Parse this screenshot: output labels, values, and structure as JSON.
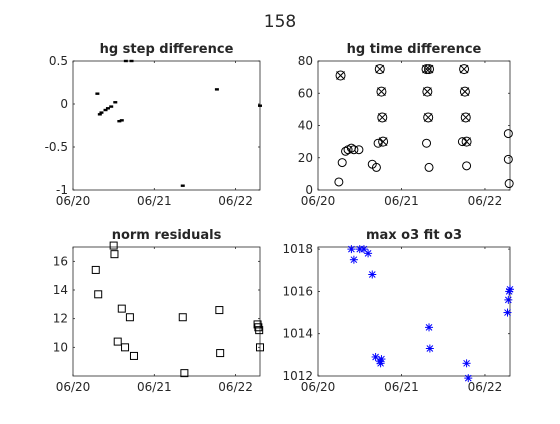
{
  "figure_title": "158",
  "colors": {
    "axis": "#262626",
    "marker_black": "#000000",
    "marker_blue": "#0000ff"
  },
  "chart_data": [
    {
      "type": "scatter",
      "title": "hg step difference",
      "xlabel": "",
      "ylabel": "",
      "xlim": [
        0,
        2.3
      ],
      "ylim": [
        -1,
        0.5
      ],
      "xticks": [
        0,
        1,
        2
      ],
      "xticklabels": [
        "06/20",
        "06/21",
        "06/22"
      ],
      "yticks": [
        -1,
        -0.5,
        0,
        0.5
      ],
      "yticklabels": [
        "-1",
        "-0.5",
        "0",
        "0.5"
      ],
      "marker": "dash",
      "series": [
        {
          "x": [
            0.3,
            0.33,
            0.35,
            0.4,
            0.43,
            0.47,
            0.52,
            0.57,
            0.6,
            0.65,
            0.72,
            1.35,
            1.77,
            2.3
          ],
          "y": [
            0.12,
            -0.12,
            -0.1,
            -0.07,
            -0.05,
            -0.03,
            0.02,
            -0.2,
            -0.19,
            0.5,
            0.5,
            -0.95,
            0.17,
            -0.02
          ]
        }
      ]
    },
    {
      "type": "scatter",
      "title": "hg time difference",
      "xlabel": "",
      "ylabel": "",
      "xlim": [
        0,
        2.3
      ],
      "ylim": [
        0,
        80
      ],
      "xticks": [
        0,
        1,
        2
      ],
      "xticklabels": [
        "06/20",
        "06/21",
        "06/22"
      ],
      "yticks": [
        0,
        20,
        40,
        60,
        80
      ],
      "yticklabels": [
        "0",
        "20",
        "40",
        "60",
        "80"
      ],
      "series": [
        {
          "marker": "circle",
          "x": [
            0.25,
            0.29,
            0.33,
            0.36,
            0.4,
            0.43,
            0.49,
            0.65,
            0.7,
            0.72,
            1.3,
            1.33,
            1.73,
            1.78,
            2.28,
            2.28,
            2.29
          ],
          "y": [
            5,
            17,
            24,
            25,
            26,
            25,
            25,
            16,
            14,
            29,
            29,
            14,
            30,
            15,
            35,
            19,
            4
          ]
        },
        {
          "marker": "circle-x",
          "x": [
            0.27,
            0.74,
            0.76,
            0.77,
            0.78,
            1.3,
            1.31,
            1.32,
            1.33,
            1.75,
            1.76,
            1.77,
            1.78
          ],
          "y": [
            71,
            75,
            61,
            45,
            30,
            75,
            61,
            45,
            75,
            75,
            61,
            45,
            30
          ]
        }
      ]
    },
    {
      "type": "scatter",
      "title": "norm residuals",
      "xlabel": "",
      "ylabel": "",
      "xlim": [
        0,
        2.3
      ],
      "ylim": [
        8,
        17
      ],
      "xticks": [
        0,
        1,
        2
      ],
      "xticklabels": [
        "06/20",
        "06/21",
        "06/22"
      ],
      "yticks": [
        10,
        12,
        14,
        16
      ],
      "yticklabels": [
        "10",
        "12",
        "14",
        "16"
      ],
      "marker": "square",
      "series": [
        {
          "x": [
            0.28,
            0.31,
            0.5,
            0.51,
            0.55,
            0.6,
            0.64,
            0.7,
            0.75,
            1.35,
            1.8,
            1.81,
            2.27,
            2.28,
            2.29,
            2.3,
            1.37
          ],
          "y": [
            15.4,
            13.7,
            17.1,
            16.5,
            10.4,
            12.7,
            10.0,
            12.1,
            9.4,
            12.1,
            12.6,
            9.6,
            11.6,
            11.4,
            11.2,
            10.0,
            8.2
          ]
        }
      ]
    },
    {
      "type": "scatter",
      "title": "max o3 fit o3",
      "xlabel": "",
      "ylabel": "",
      "xlim": [
        0,
        2.3
      ],
      "ylim": [
        1012,
        1018.1
      ],
      "xticks": [
        0,
        1,
        2
      ],
      "xticklabels": [
        "06/20",
        "06/21",
        "06/22"
      ],
      "yticks": [
        1012,
        1014,
        1016,
        1018
      ],
      "yticklabels": [
        "1012",
        "1014",
        "1016",
        "1018"
      ],
      "marker": "asterisk",
      "series": [
        {
          "x": [
            0.4,
            0.43,
            0.5,
            0.55,
            0.6,
            0.65,
            0.69,
            0.74,
            0.75,
            0.76,
            1.33,
            1.34,
            1.78,
            1.8,
            2.27,
            2.28,
            2.29,
            2.3
          ],
          "y": [
            1018.0,
            1017.5,
            1018.0,
            1018.0,
            1017.8,
            1016.8,
            1012.9,
            1012.7,
            1012.6,
            1012.8,
            1014.3,
            1013.3,
            1012.6,
            1011.9,
            1015.0,
            1015.6,
            1016.0,
            1016.1
          ]
        }
      ]
    }
  ]
}
